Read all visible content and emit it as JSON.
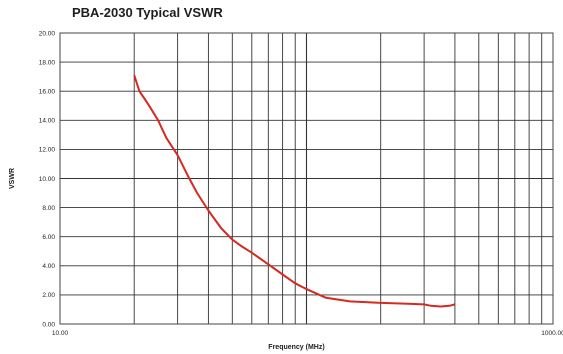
{
  "chart_data": {
    "type": "line",
    "title": "PBA-2030 Typical VSWR",
    "xlabel": "Frequency (MHz)",
    "ylabel": "VSWR",
    "x_scale": "log",
    "xlim": [
      10,
      1000
    ],
    "ylim": [
      0,
      20
    ],
    "grid": true,
    "x_tick_labels": [
      "10.00",
      "1000.00"
    ],
    "y_tick_labels": [
      "0.00",
      "2.00",
      "4.00",
      "6.00",
      "8.00",
      "10.00",
      "12.00",
      "14.00",
      "16.00",
      "18.00",
      "20.00"
    ],
    "series": [
      {
        "color": "#d42a20",
        "x": [
          20,
          21,
          22,
          23,
          25,
          27,
          30,
          33,
          36,
          40,
          45,
          50,
          55,
          60,
          70,
          80,
          90,
          100,
          120,
          150,
          200,
          250,
          300,
          320,
          350,
          380,
          400
        ],
        "y": [
          17.1,
          16.0,
          15.5,
          15.0,
          14.0,
          12.8,
          11.6,
          10.2,
          9.0,
          7.8,
          6.6,
          5.8,
          5.3,
          4.9,
          4.1,
          3.4,
          2.8,
          2.4,
          1.8,
          1.55,
          1.45,
          1.4,
          1.35,
          1.25,
          1.2,
          1.25,
          1.35
        ]
      }
    ]
  }
}
